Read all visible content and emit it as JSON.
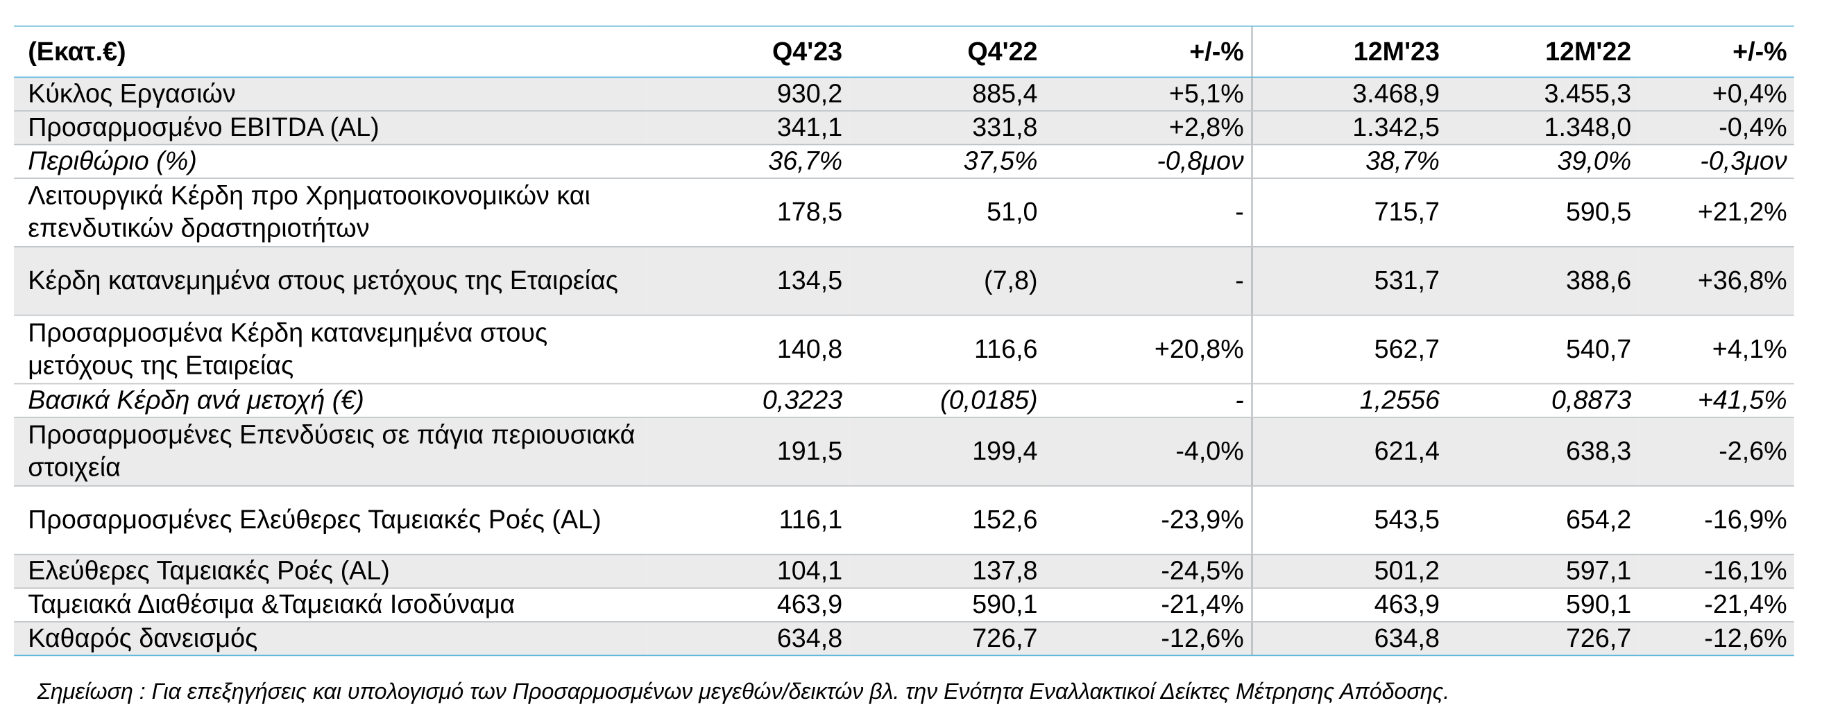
{
  "header": {
    "unit": "(Εκατ.€)",
    "q4_23": "Q4'23",
    "q4_22": "Q4'22",
    "q_change": "+/-%",
    "m12_23": "12M'23",
    "m12_22": "12M'22",
    "m12_change": "+/-%"
  },
  "rows": [
    {
      "label": "Κύκλος Εργασιών",
      "q4_23": "930,2",
      "q4_22": "885,4",
      "q_change": "+5,1%",
      "m12_23": "3.468,9",
      "m12_22": "3.455,3",
      "m12_change": "+0,4%"
    },
    {
      "label": "Προσαρμοσμένο EBITDA (AL)",
      "q4_23": "341,1",
      "q4_22": "331,8",
      "q_change": "+2,8%",
      "m12_23": "1.342,5",
      "m12_22": "1.348,0",
      "m12_change": "-0,4%"
    },
    {
      "label": "Περιθώριο (%)",
      "q4_23": "36,7%",
      "q4_22": "37,5%",
      "q_change": "-0,8μον",
      "m12_23": "38,7%",
      "m12_22": "39,0%",
      "m12_change": "-0,3μον"
    },
    {
      "label": "Λειτουργικά Κέρδη προ Χρηματοοικονομικών και επενδυτικών δραστηριοτήτων",
      "q4_23": "178,5",
      "q4_22": "51,0",
      "q_change": "-",
      "m12_23": "715,7",
      "m12_22": "590,5",
      "m12_change": "+21,2%"
    },
    {
      "label": "Κέρδη κατανεμημένα στους μετόχους της Εταιρείας",
      "q4_23": "134,5",
      "q4_22": "(7,8)",
      "q_change": "-",
      "m12_23": "531,7",
      "m12_22": "388,6",
      "m12_change": "+36,8%"
    },
    {
      "label": "Προσαρμοσμένα Κέρδη κατανεμημένα στους μετόχους της Εταιρείας",
      "q4_23": "140,8",
      "q4_22": "116,6",
      "q_change": "+20,8%",
      "m12_23": "562,7",
      "m12_22": "540,7",
      "m12_change": "+4,1%"
    },
    {
      "label": "Βασικά Κέρδη ανά μετοχή (€)",
      "q4_23": "0,3223",
      "q4_22": "(0,0185)",
      "q_change": "-",
      "m12_23": "1,2556",
      "m12_22": "0,8873",
      "m12_change": "+41,5%"
    },
    {
      "label": "Προσαρμοσμένες Επενδύσεις σε πάγια περιουσιακά στοιχεία",
      "q4_23": "191,5",
      "q4_22": "199,4",
      "q_change": "-4,0%",
      "m12_23": "621,4",
      "m12_22": "638,3",
      "m12_change": "-2,6%"
    },
    {
      "label": "Προσαρμοσμένες Ελεύθερες Ταμειακές Ροές (AL)",
      "q4_23": "116,1",
      "q4_22": "152,6",
      "q_change": "-23,9%",
      "m12_23": "543,5",
      "m12_22": "654,2",
      "m12_change": "-16,9%"
    },
    {
      "label": "Ελεύθερες Ταμειακές Ροές (AL)",
      "q4_23": "104,1",
      "q4_22": "137,8",
      "q_change": "-24,5%",
      "m12_23": "501,2",
      "m12_22": "597,1",
      "m12_change": "-16,1%"
    },
    {
      "label": "Ταμειακά Διαθέσιμα &Ταμειακά Ισοδύναμα",
      "q4_23": "463,9",
      "q4_22": "590,1",
      "q_change": "-21,4%",
      "m12_23": "463,9",
      "m12_22": "590,1",
      "m12_change": "-21,4%"
    },
    {
      "label": "Καθαρός δανεισμός",
      "q4_23": "634,8",
      "q4_22": "726,7",
      "q_change": "-12,6%",
      "m12_23": "634,8",
      "m12_22": "726,7",
      "m12_change": "-12,6%"
    }
  ],
  "note": "Σημείωση : Για επεξηγήσεις και υπολογισμό των Προσαρμοσμένων μεγεθών/δεικτών βλ. την Ενότητα Εναλλακτικοί Δείκτες Μέτρησης Απόδοσης."
}
